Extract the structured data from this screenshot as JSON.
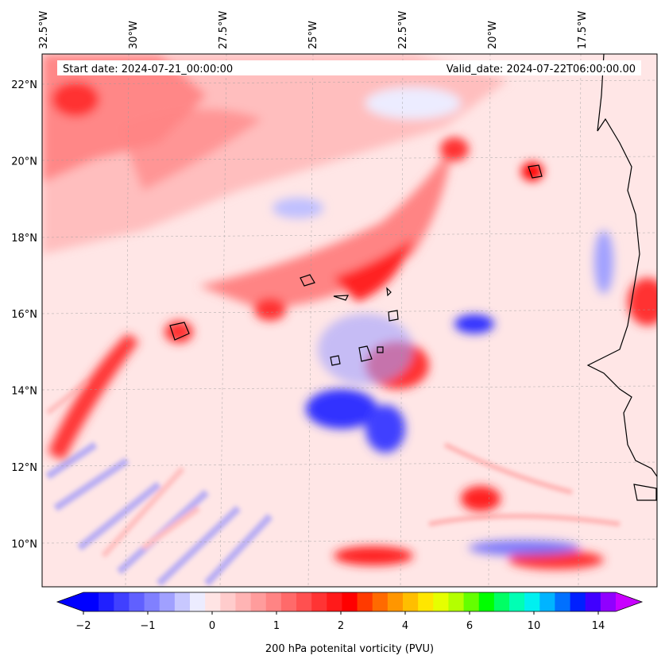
{
  "map": {
    "start_label": "Start date: 2024-07-21_00:00:00",
    "valid_label": "Valid_date: 2024-07-22T06:00:00.00",
    "lon_labels": [
      {
        "text": "32.5°W",
        "lon": -32.5
      },
      {
        "text": "30°W",
        "lon": -30
      },
      {
        "text": "27.5°W",
        "lon": -27.5
      },
      {
        "text": "25°W",
        "lon": -25
      },
      {
        "text": "22.5°W",
        "lon": -22.5
      },
      {
        "text": "20°W",
        "lon": -20
      },
      {
        "text": "17.5°W",
        "lon": -17.5
      }
    ],
    "lat_labels": [
      {
        "text": "22°N",
        "lat": 22
      },
      {
        "text": "20°N",
        "lat": 20
      },
      {
        "text": "18°N",
        "lat": 18
      },
      {
        "text": "16°N",
        "lat": 16
      },
      {
        "text": "14°N",
        "lat": 14
      },
      {
        "text": "12°N",
        "lat": 12
      },
      {
        "text": "10°N",
        "lat": 10
      }
    ]
  },
  "colorbar": {
    "label": "200 hPa potenital vorticity (PVU)",
    "ticks": [
      "−2",
      "−1",
      "0",
      "1",
      "2",
      "4",
      "6",
      "10",
      "14"
    ],
    "colors": [
      "#0000ff",
      "#2020ff",
      "#4040ff",
      "#6060ff",
      "#8080ff",
      "#a0a0ff",
      "#c8c8ff",
      "#ececff",
      "#ffe4e4",
      "#ffcccc",
      "#ffb4b4",
      "#ff9c9c",
      "#ff8484",
      "#ff6a6a",
      "#ff5050",
      "#ff3434",
      "#ff1a1a",
      "#ff0000",
      "#ff3a00",
      "#ff6a00",
      "#ff9600",
      "#ffbe00",
      "#ffe600",
      "#e6ff00",
      "#b4ff00",
      "#64ff00",
      "#00ff00",
      "#00ff64",
      "#00ffb4",
      "#00f0f0",
      "#00b4ff",
      "#0070ff",
      "#0020ff",
      "#4000ff",
      "#9000ff"
    ],
    "min_color": "#0000ff",
    "max_color": "#c800ff"
  }
}
